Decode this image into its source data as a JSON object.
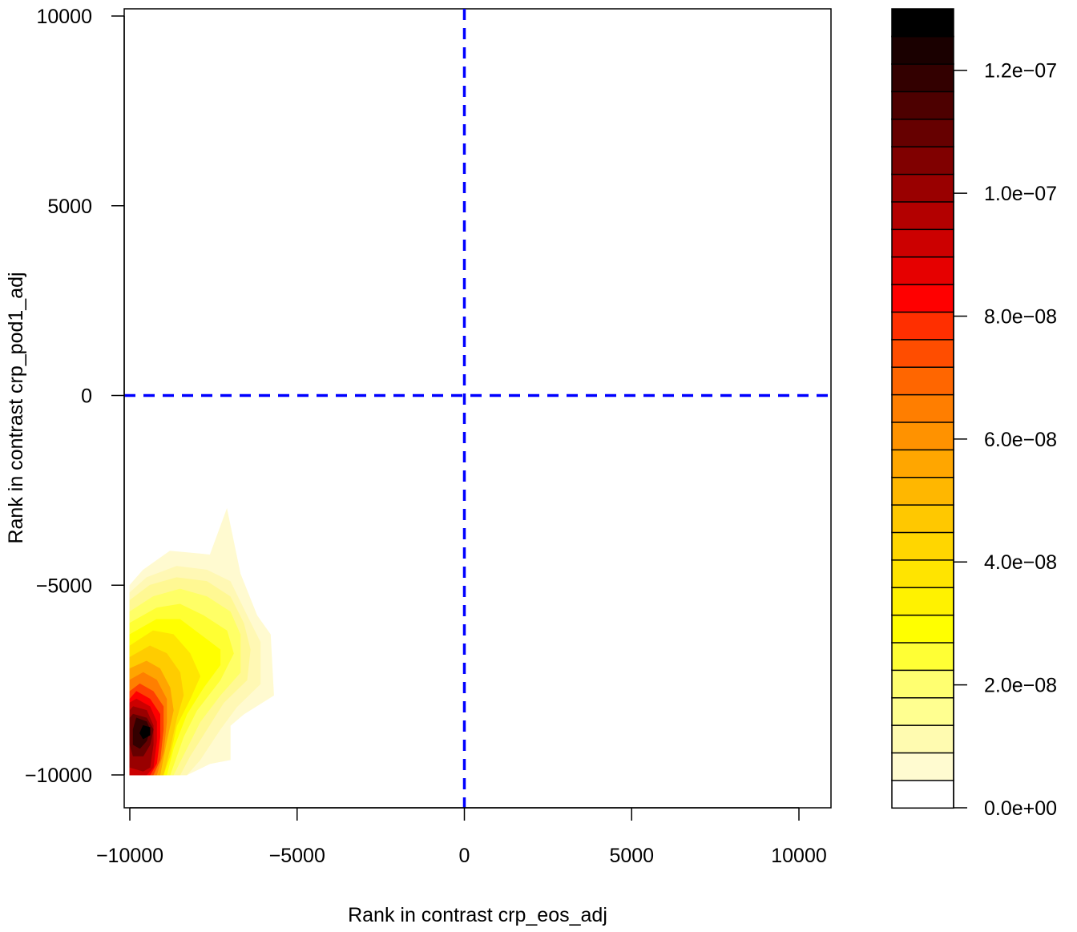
{
  "chart_data": {
    "type": "heatmap",
    "subtype": "filled-contour",
    "title": "",
    "xlabel": "Rank in contrast crp_eos_adj",
    "ylabel": "Rank in contrast crp_pod1_adj",
    "xlim": [
      -10000,
      10000
    ],
    "ylim": [
      -10000,
      10000
    ],
    "x_ticks": [
      -10000,
      -5000,
      0,
      5000,
      10000
    ],
    "x_tick_labels": [
      "−10000",
      "−5000",
      "0",
      "5000",
      "10000"
    ],
    "y_ticks": [
      -10000,
      -5000,
      0,
      5000,
      10000
    ],
    "y_tick_labels": [
      "−10000",
      "−5000",
      "0",
      "5000",
      "10000"
    ],
    "reference_lines": [
      {
        "orientation": "vertical",
        "value": 0,
        "color": "#0000ff",
        "style": "dashed"
      },
      {
        "orientation": "horizontal",
        "value": 0,
        "color": "#0000ff",
        "style": "dashed"
      }
    ],
    "grid": false,
    "legend_position": "right",
    "colorbar": {
      "min": 0,
      "max": 1.3e-07,
      "levels": 26,
      "ticks": [
        0,
        2e-08,
        4e-08,
        6e-08,
        8e-08,
        1e-07,
        1.2e-07
      ],
      "tick_labels": [
        "0.0e+00",
        "2.0e−08",
        "4.0e−08",
        "6.0e−08",
        "8.0e−08",
        "1.0e−07",
        "1.2e−07"
      ],
      "colors": [
        "#ffffff",
        "#fffbd0",
        "#fffbb0",
        "#ffff90",
        "#ffff70",
        "#ffff35",
        "#ffff00",
        "#fff200",
        "#ffe400",
        "#ffd600",
        "#ffc800",
        "#ffb700",
        "#ffa600",
        "#ff9200",
        "#ff7e00",
        "#ff6600",
        "#ff4d00",
        "#ff2f00",
        "#ff0000",
        "#e60000",
        "#cc0000",
        "#b30000",
        "#990000",
        "#800000",
        "#660000",
        "#4d0000",
        "#330000",
        "#1a0000",
        "#000000"
      ]
    },
    "contours": [
      {
        "level": 1,
        "color": "#fffad0",
        "points": [
          [
            -9600,
            -4600
          ],
          [
            -8800,
            -4100
          ],
          [
            -7600,
            -4200
          ],
          [
            -7100,
            -3000
          ],
          [
            -6700,
            -4700
          ],
          [
            -6200,
            -5800
          ],
          [
            -5800,
            -6300
          ],
          [
            -5700,
            -7900
          ],
          [
            -6600,
            -8400
          ],
          [
            -7000,
            -8700
          ],
          [
            -7000,
            -9600
          ],
          [
            -7600,
            -9700
          ],
          [
            -8300,
            -10000
          ],
          [
            -10000,
            -10000
          ],
          [
            -10000,
            -5000
          ]
        ]
      },
      {
        "level": 2,
        "color": "#fff8b4",
        "points": [
          [
            -9500,
            -4800
          ],
          [
            -8600,
            -4500
          ],
          [
            -7700,
            -4600
          ],
          [
            -7000,
            -4900
          ],
          [
            -6500,
            -5800
          ],
          [
            -6100,
            -6500
          ],
          [
            -6100,
            -7600
          ],
          [
            -6800,
            -8200
          ],
          [
            -7300,
            -8800
          ],
          [
            -7900,
            -9600
          ],
          [
            -8300,
            -10000
          ],
          [
            -10000,
            -10000
          ],
          [
            -10000,
            -5200
          ]
        ]
      },
      {
        "level": 3,
        "color": "#fff893",
        "points": [
          [
            -9400,
            -5000
          ],
          [
            -8600,
            -4800
          ],
          [
            -7700,
            -4900
          ],
          [
            -7000,
            -5300
          ],
          [
            -6600,
            -6000
          ],
          [
            -6400,
            -6700
          ],
          [
            -6500,
            -7500
          ],
          [
            -7200,
            -8100
          ],
          [
            -7700,
            -8800
          ],
          [
            -8200,
            -9500
          ],
          [
            -8500,
            -10000
          ],
          [
            -10000,
            -10000
          ],
          [
            -10000,
            -5400
          ]
        ]
      },
      {
        "level": 4,
        "color": "#ffff66",
        "points": [
          [
            -9300,
            -5300
          ],
          [
            -8500,
            -5100
          ],
          [
            -7700,
            -5300
          ],
          [
            -7000,
            -5700
          ],
          [
            -6700,
            -6300
          ],
          [
            -6700,
            -7300
          ],
          [
            -7300,
            -7900
          ],
          [
            -7900,
            -8600
          ],
          [
            -8300,
            -9300
          ],
          [
            -8700,
            -10000
          ],
          [
            -10000,
            -10000
          ],
          [
            -10000,
            -5700
          ]
        ]
      },
      {
        "level": 5,
        "color": "#ffff33",
        "points": [
          [
            -9200,
            -5600
          ],
          [
            -8500,
            -5500
          ],
          [
            -7800,
            -5800
          ],
          [
            -7100,
            -6200
          ],
          [
            -6900,
            -6800
          ],
          [
            -7300,
            -7500
          ],
          [
            -8000,
            -8300
          ],
          [
            -8400,
            -9000
          ],
          [
            -8800,
            -10000
          ],
          [
            -10000,
            -10000
          ],
          [
            -10000,
            -6000
          ]
        ]
      },
      {
        "level": 6,
        "color": "#ffff00",
        "points": [
          [
            -9200,
            -5900
          ],
          [
            -8500,
            -5900
          ],
          [
            -7900,
            -6300
          ],
          [
            -7300,
            -6700
          ],
          [
            -7300,
            -7100
          ],
          [
            -7800,
            -7700
          ],
          [
            -8300,
            -8400
          ],
          [
            -8700,
            -9300
          ],
          [
            -8900,
            -10000
          ],
          [
            -10000,
            -10000
          ],
          [
            -10000,
            -6300
          ]
        ]
      },
      {
        "level": 7,
        "color": "#ffe600",
        "points": [
          [
            -9300,
            -6200
          ],
          [
            -8700,
            -6300
          ],
          [
            -8200,
            -6800
          ],
          [
            -7900,
            -7400
          ],
          [
            -8200,
            -8000
          ],
          [
            -8600,
            -8700
          ],
          [
            -8800,
            -9500
          ],
          [
            -9000,
            -10000
          ],
          [
            -10000,
            -10000
          ],
          [
            -10000,
            -6600
          ]
        ]
      },
      {
        "level": 8,
        "color": "#ffcc00",
        "points": [
          [
            -9400,
            -6600
          ],
          [
            -8900,
            -6800
          ],
          [
            -8500,
            -7300
          ],
          [
            -8400,
            -7900
          ],
          [
            -8600,
            -8500
          ],
          [
            -8800,
            -9300
          ],
          [
            -9000,
            -10000
          ],
          [
            -10000,
            -10000
          ],
          [
            -10000,
            -6900
          ]
        ]
      },
      {
        "level": 9,
        "color": "#ffa500",
        "points": [
          [
            -9500,
            -7000
          ],
          [
            -9100,
            -7200
          ],
          [
            -8800,
            -7700
          ],
          [
            -8700,
            -8300
          ],
          [
            -8900,
            -9100
          ],
          [
            -9100,
            -10000
          ],
          [
            -10000,
            -10000
          ],
          [
            -10000,
            -7200
          ]
        ]
      },
      {
        "level": 10,
        "color": "#ff7f00",
        "points": [
          [
            -9600,
            -7300
          ],
          [
            -9200,
            -7500
          ],
          [
            -8900,
            -8000
          ],
          [
            -8900,
            -8600
          ],
          [
            -9000,
            -9400
          ],
          [
            -9200,
            -10000
          ],
          [
            -10000,
            -10000
          ],
          [
            -10000,
            -7500
          ]
        ]
      },
      {
        "level": 11,
        "color": "#ff4000",
        "points": [
          [
            -9700,
            -7600
          ],
          [
            -9300,
            -7800
          ],
          [
            -9000,
            -8200
          ],
          [
            -9000,
            -8800
          ],
          [
            -9100,
            -9600
          ],
          [
            -9300,
            -10000
          ],
          [
            -10000,
            -10000
          ],
          [
            -10000,
            -7800
          ]
        ]
      },
      {
        "level": 12,
        "color": "#ff0000",
        "points": [
          [
            -9800,
            -7800
          ],
          [
            -9400,
            -8000
          ],
          [
            -9100,
            -8400
          ],
          [
            -9100,
            -9000
          ],
          [
            -9200,
            -9700
          ],
          [
            -9400,
            -10000
          ],
          [
            -10000,
            -10000
          ],
          [
            -10000,
            -8000
          ]
        ]
      },
      {
        "level": 13,
        "color": "#cc0000",
        "points": [
          [
            -9800,
            -8000
          ],
          [
            -9400,
            -8200
          ],
          [
            -9200,
            -8600
          ],
          [
            -9200,
            -9100
          ],
          [
            -9300,
            -9800
          ],
          [
            -9500,
            -10000
          ],
          [
            -10000,
            -10000
          ],
          [
            -10000,
            -8100
          ]
        ]
      },
      {
        "level": 14,
        "color": "#990000",
        "points": [
          [
            -9900,
            -8200
          ],
          [
            -9500,
            -8300
          ],
          [
            -9300,
            -8700
          ],
          [
            -9300,
            -9200
          ],
          [
            -9400,
            -9800
          ],
          [
            -9600,
            -9900
          ],
          [
            -10000,
            -9800
          ],
          [
            -10000,
            -8300
          ]
        ]
      },
      {
        "level": 15,
        "color": "#660000",
        "points": [
          [
            -9900,
            -8400
          ],
          [
            -9500,
            -8500
          ],
          [
            -9300,
            -8800
          ],
          [
            -9400,
            -9200
          ],
          [
            -9600,
            -9500
          ],
          [
            -9900,
            -9500
          ],
          [
            -10000,
            -9200
          ],
          [
            -10000,
            -8500
          ]
        ]
      },
      {
        "level": 16,
        "color": "#330000",
        "points": [
          [
            -9800,
            -8500
          ],
          [
            -9500,
            -8600
          ],
          [
            -9400,
            -8800
          ],
          [
            -9500,
            -9100
          ],
          [
            -9700,
            -9300
          ],
          [
            -9900,
            -9200
          ],
          [
            -9900,
            -8800
          ]
        ]
      },
      {
        "level": 17,
        "color": "#000000",
        "points": [
          [
            -9600,
            -8700
          ],
          [
            -9400,
            -8750
          ],
          [
            -9400,
            -8950
          ],
          [
            -9600,
            -9050
          ],
          [
            -9700,
            -8900
          ]
        ]
      }
    ]
  }
}
